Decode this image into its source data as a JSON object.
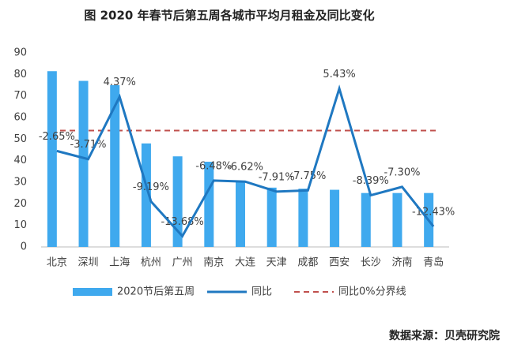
{
  "chart_data": {
    "type": "bar",
    "title": "图  2020 年春节后第五周各城市平均月租金及同比变化",
    "source": "数据来源：贝壳研究院",
    "categories": [
      "北京",
      "深圳",
      "上海",
      "杭州",
      "广州",
      "南京",
      "大连",
      "天津",
      "成都",
      "西安",
      "长沙",
      "济南",
      "青岛"
    ],
    "series": [
      {
        "name": "2020节后第五周",
        "type": "bar",
        "color": "#3fa9ee",
        "values": [
          81.5,
          77,
          75,
          48,
          42,
          39.5,
          30.5,
          27.5,
          27,
          26.5,
          25,
          25,
          25
        ]
      },
      {
        "name": "同比",
        "type": "line",
        "axis": "y2",
        "color": "#1f78c1",
        "values": [
          -2.65,
          -3.71,
          4.37,
          -9.19,
          -13.68,
          -6.48,
          -6.62,
          -7.91,
          -7.75,
          5.43,
          -8.39,
          -7.3,
          -12.43
        ],
        "value_labels": [
          "-2.65%",
          "-3.71%",
          "4.37%",
          "-9.19%",
          "-13.68%",
          "-6.48%",
          "-6.62%",
          "-7.91%",
          "-7.75%",
          "5.43%",
          "-8.39%",
          "-7.30%",
          "-12.43%"
        ]
      }
    ],
    "reference_lines": [
      {
        "name": "同比0%分界线",
        "value": 0,
        "axis": "y2",
        "color": "#c0504d"
      }
    ],
    "ylim": [
      0,
      90
    ],
    "yticks": [
      0,
      10,
      20,
      30,
      40,
      50,
      60,
      70,
      80,
      90
    ],
    "y2lim": [
      -15.08,
      10.06
    ],
    "grid": false
  }
}
